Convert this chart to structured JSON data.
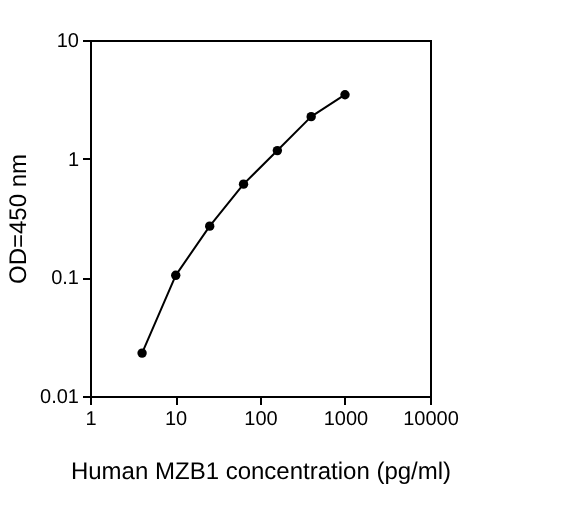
{
  "chart_data": {
    "type": "line",
    "xlabel": "Human MZB1 concentration (pg/ml)",
    "ylabel": "OD=450 nm",
    "log": "xy",
    "marker": "circle",
    "line_style": "solid",
    "grid": false,
    "x": [
      4.1,
      10.2,
      25.6,
      64,
      160,
      400,
      1000
    ],
    "series": [
      {
        "color": "#000000",
        "values": [
          0.023,
          0.104,
          0.27,
          0.61,
          1.17,
          2.26,
          3.46
        ]
      }
    ],
    "xlim": [
      1,
      10000
    ],
    "xticks": [
      1,
      10,
      100,
      1000,
      10000
    ],
    "ylim": [
      0.01,
      10
    ],
    "yticks": [
      0.01,
      0.1,
      1,
      10
    ]
  }
}
